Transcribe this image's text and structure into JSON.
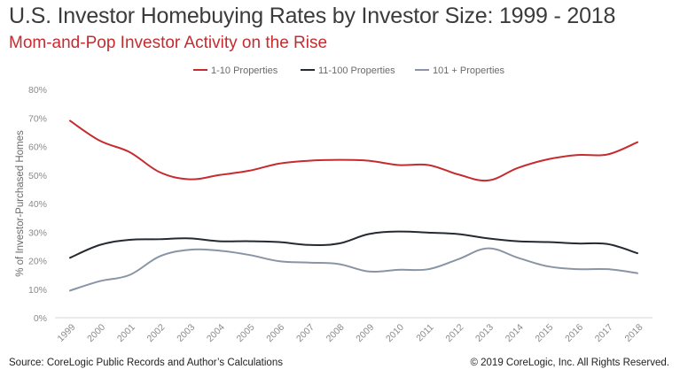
{
  "header": {
    "title": "U.S. Investor Homebuying Rates by Investor Size: 1999 - 2018",
    "subtitle": "Mom-and-Pop Investor Activity on the Rise"
  },
  "footer": {
    "source": "Source: CoreLogic Public Records and Author’s Calculations",
    "copyright": "© 2019 CoreLogic, Inc. All Rights Reserved."
  },
  "colors": {
    "title": "#3b3b3b",
    "subtitle": "#c62b2f"
  },
  "chart_data": {
    "type": "line",
    "ylabel": "% of Investor-Purchased Homes",
    "xlabel": "",
    "ylim": [
      0,
      80
    ],
    "yticks": [
      0,
      10,
      20,
      30,
      40,
      50,
      60,
      70,
      80
    ],
    "ytick_labels": [
      "0%",
      "10%",
      "20%",
      "30%",
      "40%",
      "50%",
      "60%",
      "70%",
      "80%"
    ],
    "grid": false,
    "legend_position": "top",
    "x": [
      "1999",
      "2000",
      "2001",
      "2002",
      "2003",
      "2004",
      "2005",
      "2006",
      "2007",
      "2008",
      "2009",
      "2010",
      "2011",
      "2012",
      "2013",
      "2014",
      "2015",
      "2016",
      "2017",
      "2018"
    ],
    "series": [
      {
        "name": "1-10 Properties",
        "color": "#c62b2f",
        "values": [
          69,
          62,
          58,
          51,
          48.5,
          50,
          51.5,
          54,
          55,
          55.3,
          55,
          53.5,
          53.5,
          50.2,
          48.1,
          52.5,
          55.5,
          57,
          57.2,
          61.5
        ]
      },
      {
        "name": "11-100 Properties",
        "color": "#252a30",
        "values": [
          21,
          25.5,
          27.3,
          27.5,
          27.8,
          26.8,
          26.8,
          26.5,
          25.5,
          26,
          29.3,
          30.2,
          29.8,
          29.3,
          27.8,
          26.8,
          26.5,
          26,
          25.8,
          22.6
        ]
      },
      {
        "name": "101 + Properties",
        "color": "#8995a5",
        "values": [
          9.5,
          12.8,
          15,
          21.5,
          23.8,
          23.5,
          22,
          19.8,
          19.3,
          18.8,
          16.2,
          16.8,
          17,
          20.5,
          24.3,
          21,
          18,
          17,
          17,
          15.6
        ]
      }
    ]
  }
}
